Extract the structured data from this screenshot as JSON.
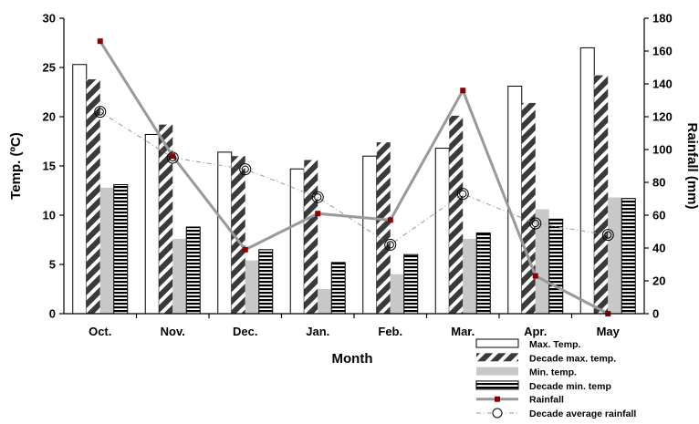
{
  "chart_data": {
    "type": "bar",
    "categories": [
      "Oct.",
      "Nov.",
      "Dec.",
      "Jan.",
      "Feb.",
      "Mar.",
      "Apr.",
      "May"
    ],
    "xlabel": "Month",
    "ylabel": "Temp. (ºC)",
    "y2label": "Rainfall (mm)",
    "ylim": [
      0,
      30
    ],
    "y2lim": [
      0,
      180
    ],
    "yticks": [
      "0",
      "5",
      "10",
      "15",
      "20",
      "25",
      "30"
    ],
    "y2ticks": [
      "0",
      "20",
      "40",
      "60",
      "80",
      "100",
      "120",
      "140",
      "160",
      "180"
    ],
    "grid": false,
    "legend_position": "bottom-right",
    "bar_series": [
      {
        "name": "Max. Temp.",
        "values": [
          25.3,
          18.2,
          16.4,
          14.7,
          16.0,
          16.8,
          23.1,
          27.0
        ],
        "style": "white"
      },
      {
        "name": "Decade max. temp.",
        "values": [
          23.8,
          19.2,
          16.0,
          15.6,
          17.4,
          20.1,
          21.4,
          24.2
        ],
        "style": "diagonal"
      },
      {
        "name": "Min. temp.",
        "values": [
          12.8,
          7.6,
          5.4,
          2.5,
          4.0,
          7.6,
          10.6,
          11.8
        ],
        "style": "lightgray"
      },
      {
        "name": "Decade min. temp",
        "values": [
          13.1,
          8.8,
          6.5,
          5.2,
          6.0,
          8.2,
          9.6,
          11.7
        ],
        "style": "horizontal"
      }
    ],
    "line_series": [
      {
        "name": "Rainfall",
        "values": [
          166,
          96,
          39,
          61,
          57,
          136,
          23,
          0
        ],
        "axis": "right",
        "color": "#999999",
        "marker_color": "#8b0000"
      },
      {
        "name": "Decade average rainfall",
        "values": [
          123,
          95,
          88,
          71,
          42,
          73,
          55,
          48
        ],
        "axis": "right",
        "color": "#999999"
      }
    ]
  }
}
